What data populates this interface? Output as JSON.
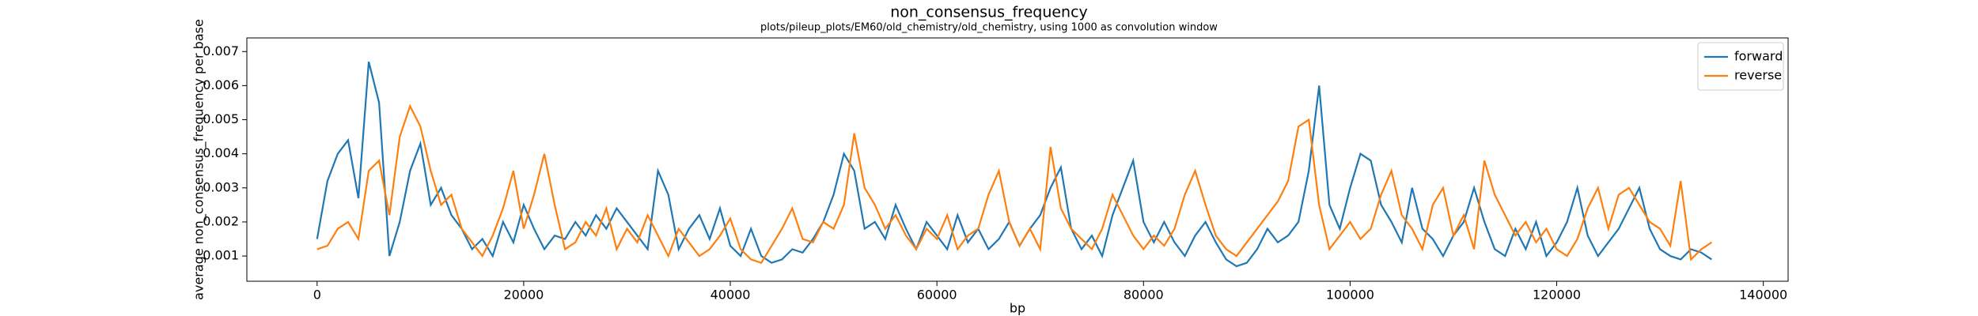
{
  "chart_data": {
    "type": "line",
    "title": "non_consensus_frequency",
    "subtitle": "plots/pileup_plots/EM60/old_chemistry/old_chemistry, using 1000 as convolution window",
    "x_label": "bp",
    "y_label": "average non_consensus_frequency per base",
    "xlim": [
      -6800,
      142400
    ],
    "ylim": [
      0.00026,
      0.0074
    ],
    "xticks": [
      0,
      20000,
      40000,
      60000,
      80000,
      100000,
      120000,
      140000
    ],
    "yticks": [
      0.001,
      0.002,
      0.003,
      0.004,
      0.005,
      0.006,
      0.007
    ],
    "legend": "upper right",
    "x": [
      0,
      1000,
      2000,
      3000,
      4000,
      5000,
      6000,
      7000,
      8000,
      9000,
      10000,
      11000,
      12000,
      13000,
      14000,
      15000,
      16000,
      17000,
      18000,
      19000,
      20000,
      21000,
      22000,
      23000,
      24000,
      25000,
      26000,
      27000,
      28000,
      29000,
      30000,
      31000,
      32000,
      33000,
      34000,
      35000,
      36000,
      37000,
      38000,
      39000,
      40000,
      41000,
      42000,
      43000,
      44000,
      45000,
      46000,
      47000,
      48000,
      49000,
      50000,
      51000,
      52000,
      53000,
      54000,
      55000,
      56000,
      57000,
      58000,
      59000,
      60000,
      61000,
      62000,
      63000,
      64000,
      65000,
      66000,
      67000,
      68000,
      69000,
      70000,
      71000,
      72000,
      73000,
      74000,
      75000,
      76000,
      77000,
      78000,
      79000,
      80000,
      81000,
      82000,
      83000,
      84000,
      85000,
      86000,
      87000,
      88000,
      89000,
      90000,
      91000,
      92000,
      93000,
      94000,
      95000,
      96000,
      97000,
      98000,
      99000,
      100000,
      101000,
      102000,
      103000,
      104000,
      105000,
      106000,
      107000,
      108000,
      109000,
      110000,
      111000,
      112000,
      113000,
      114000,
      115000,
      116000,
      117000,
      118000,
      119000,
      120000,
      121000,
      122000,
      123000,
      124000,
      125000,
      126000,
      127000,
      128000,
      129000,
      130000,
      131000,
      132000,
      133000,
      134000,
      135000
    ],
    "series": [
      {
        "name": "forward",
        "color": "#1f77b4",
        "values": [
          0.0015,
          0.0032,
          0.004,
          0.0044,
          0.0027,
          0.0067,
          0.0055,
          0.001,
          0.002,
          0.0035,
          0.0043,
          0.0025,
          0.003,
          0.0022,
          0.0018,
          0.0012,
          0.0015,
          0.001,
          0.002,
          0.0014,
          0.0025,
          0.0018,
          0.0012,
          0.0016,
          0.0015,
          0.002,
          0.0016,
          0.0022,
          0.0018,
          0.0024,
          0.002,
          0.0016,
          0.0012,
          0.0035,
          0.0028,
          0.0012,
          0.0018,
          0.0022,
          0.0015,
          0.0024,
          0.0013,
          0.001,
          0.0018,
          0.001,
          0.0008,
          0.0009,
          0.0012,
          0.0011,
          0.0015,
          0.002,
          0.0028,
          0.004,
          0.0035,
          0.0018,
          0.002,
          0.0015,
          0.0025,
          0.0018,
          0.0012,
          0.002,
          0.0016,
          0.0012,
          0.0022,
          0.0014,
          0.0018,
          0.0012,
          0.0015,
          0.002,
          0.0013,
          0.0018,
          0.0022,
          0.003,
          0.0036,
          0.0018,
          0.0012,
          0.0016,
          0.001,
          0.0022,
          0.003,
          0.0038,
          0.002,
          0.0014,
          0.002,
          0.0014,
          0.001,
          0.0016,
          0.002,
          0.0014,
          0.0009,
          0.0007,
          0.0008,
          0.0012,
          0.0018,
          0.0014,
          0.0016,
          0.002,
          0.0035,
          0.006,
          0.0025,
          0.0018,
          0.003,
          0.004,
          0.0038,
          0.0025,
          0.002,
          0.0014,
          0.003,
          0.0018,
          0.0015,
          0.001,
          0.0016,
          0.002,
          0.003,
          0.002,
          0.0012,
          0.001,
          0.0018,
          0.0012,
          0.002,
          0.001,
          0.0014,
          0.002,
          0.003,
          0.0016,
          0.001,
          0.0014,
          0.0018,
          0.0024,
          0.003,
          0.0018,
          0.0012,
          0.001,
          0.0009,
          0.0012,
          0.0011,
          0.0009
        ]
      },
      {
        "name": "reverse",
        "color": "#ff7f0e",
        "values": [
          0.0012,
          0.0013,
          0.0018,
          0.002,
          0.0015,
          0.0035,
          0.0038,
          0.0022,
          0.0045,
          0.0054,
          0.0048,
          0.0035,
          0.0025,
          0.0028,
          0.0018,
          0.0014,
          0.001,
          0.0016,
          0.0024,
          0.0035,
          0.0018,
          0.0028,
          0.004,
          0.0025,
          0.0012,
          0.0014,
          0.002,
          0.0016,
          0.0024,
          0.0012,
          0.0018,
          0.0014,
          0.0022,
          0.0016,
          0.001,
          0.0018,
          0.0014,
          0.001,
          0.0012,
          0.0016,
          0.0021,
          0.0012,
          0.0009,
          0.0008,
          0.0013,
          0.0018,
          0.0024,
          0.0015,
          0.0014,
          0.002,
          0.0018,
          0.0025,
          0.0046,
          0.003,
          0.0025,
          0.0018,
          0.0022,
          0.0016,
          0.0012,
          0.0018,
          0.0015,
          0.0022,
          0.0012,
          0.0016,
          0.0018,
          0.0028,
          0.0035,
          0.002,
          0.0013,
          0.0018,
          0.0012,
          0.0042,
          0.0024,
          0.0018,
          0.0015,
          0.0012,
          0.0018,
          0.0028,
          0.0022,
          0.0016,
          0.0012,
          0.0016,
          0.0013,
          0.0018,
          0.0028,
          0.0035,
          0.0025,
          0.0016,
          0.0012,
          0.001,
          0.0014,
          0.0018,
          0.0022,
          0.0026,
          0.0032,
          0.0048,
          0.005,
          0.0025,
          0.0012,
          0.0016,
          0.002,
          0.0015,
          0.0018,
          0.0028,
          0.0035,
          0.0022,
          0.0018,
          0.0012,
          0.0025,
          0.003,
          0.0016,
          0.0022,
          0.0012,
          0.0038,
          0.0028,
          0.0022,
          0.0016,
          0.002,
          0.0014,
          0.0018,
          0.0012,
          0.001,
          0.0015,
          0.0024,
          0.003,
          0.0018,
          0.0028,
          0.003,
          0.0025,
          0.002,
          0.0018,
          0.0013,
          0.0032,
          0.0009,
          0.0012,
          0.0014
        ]
      }
    ]
  }
}
